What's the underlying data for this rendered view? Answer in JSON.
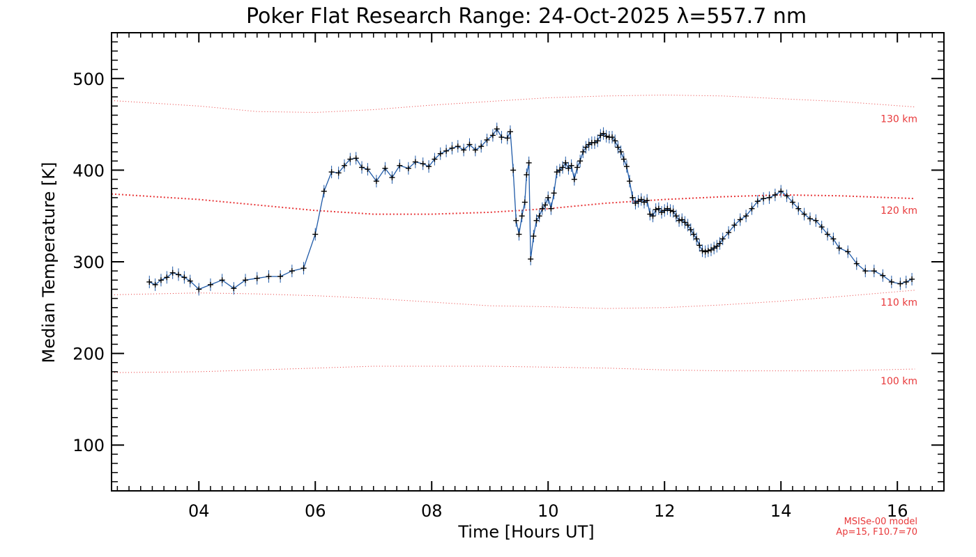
{
  "chart_data": {
    "type": "line",
    "title": "Poker Flat Research Range: 24-Oct-2025 λ=557.7 nm",
    "xlabel": "Time [Hours UT]",
    "ylabel": "Median Temperature [K]",
    "xlim": [
      2.5,
      16.8
    ],
    "ylim": [
      50,
      550
    ],
    "x_ticks": [
      4,
      6,
      8,
      10,
      12,
      14,
      16
    ],
    "x_tick_labels": [
      "04",
      "06",
      "08",
      "10",
      "12",
      "14",
      "16"
    ],
    "y_ticks": [
      100,
      200,
      300,
      400,
      500
    ],
    "y_tick_labels": [
      "100",
      "200",
      "300",
      "400",
      "500"
    ],
    "line_color": "#1f5aa8",
    "marker_color": "#000000",
    "model_color": "#e8383a",
    "series": [
      {
        "name": "Median Temperature",
        "points": [
          [
            3.15,
            278
          ],
          [
            3.25,
            275
          ],
          [
            3.35,
            280
          ],
          [
            3.45,
            283
          ],
          [
            3.55,
            288
          ],
          [
            3.65,
            286
          ],
          [
            3.75,
            283
          ],
          [
            3.85,
            279
          ],
          [
            4.0,
            270
          ],
          [
            4.2,
            275
          ],
          [
            4.4,
            280
          ],
          [
            4.6,
            271
          ],
          [
            4.8,
            280
          ],
          [
            5.0,
            282
          ],
          [
            5.2,
            284
          ],
          [
            5.4,
            284
          ],
          [
            5.6,
            290
          ],
          [
            5.8,
            293
          ],
          [
            6.0,
            330
          ],
          [
            6.15,
            377
          ],
          [
            6.28,
            398
          ],
          [
            6.4,
            397
          ],
          [
            6.5,
            405
          ],
          [
            6.6,
            412
          ],
          [
            6.7,
            413
          ],
          [
            6.8,
            403
          ],
          [
            6.9,
            401
          ],
          [
            7.05,
            388
          ],
          [
            7.2,
            402
          ],
          [
            7.32,
            392
          ],
          [
            7.45,
            405
          ],
          [
            7.6,
            402
          ],
          [
            7.72,
            409
          ],
          [
            7.85,
            407
          ],
          [
            7.95,
            404
          ],
          [
            8.05,
            412
          ],
          [
            8.15,
            418
          ],
          [
            8.25,
            421
          ],
          [
            8.35,
            424
          ],
          [
            8.45,
            426
          ],
          [
            8.55,
            422
          ],
          [
            8.65,
            428
          ],
          [
            8.75,
            422
          ],
          [
            8.85,
            426
          ],
          [
            8.95,
            433
          ],
          [
            9.05,
            438
          ],
          [
            9.12,
            445
          ],
          [
            9.2,
            436
          ],
          [
            9.3,
            435
          ],
          [
            9.35,
            442
          ],
          [
            9.4,
            400
          ],
          [
            9.45,
            345
          ],
          [
            9.5,
            330
          ],
          [
            9.55,
            350
          ],
          [
            9.6,
            365
          ],
          [
            9.63,
            395
          ],
          [
            9.67,
            408
          ],
          [
            9.7,
            303
          ],
          [
            9.75,
            328
          ],
          [
            9.8,
            345
          ],
          [
            9.85,
            350
          ],
          [
            9.9,
            358
          ],
          [
            9.95,
            362
          ],
          [
            10.0,
            370
          ],
          [
            10.05,
            358
          ],
          [
            10.1,
            375
          ],
          [
            10.15,
            398
          ],
          [
            10.2,
            400
          ],
          [
            10.25,
            403
          ],
          [
            10.3,
            408
          ],
          [
            10.35,
            402
          ],
          [
            10.4,
            405
          ],
          [
            10.45,
            390
          ],
          [
            10.5,
            403
          ],
          [
            10.55,
            410
          ],
          [
            10.6,
            420
          ],
          [
            10.65,
            425
          ],
          [
            10.7,
            428
          ],
          [
            10.75,
            430
          ],
          [
            10.8,
            430
          ],
          [
            10.85,
            432
          ],
          [
            10.9,
            438
          ],
          [
            10.95,
            440
          ],
          [
            11.0,
            437
          ],
          [
            11.05,
            436
          ],
          [
            11.1,
            436
          ],
          [
            11.15,
            432
          ],
          [
            11.2,
            425
          ],
          [
            11.25,
            420
          ],
          [
            11.3,
            412
          ],
          [
            11.35,
            404
          ],
          [
            11.4,
            388
          ],
          [
            11.45,
            370
          ],
          [
            11.5,
            364
          ],
          [
            11.55,
            366
          ],
          [
            11.6,
            368
          ],
          [
            11.65,
            365
          ],
          [
            11.7,
            367
          ],
          [
            11.75,
            352
          ],
          [
            11.8,
            350
          ],
          [
            11.85,
            357
          ],
          [
            11.9,
            358
          ],
          [
            11.95,
            354
          ],
          [
            12.0,
            356
          ],
          [
            12.05,
            358
          ],
          [
            12.1,
            356
          ],
          [
            12.15,
            355
          ],
          [
            12.2,
            350
          ],
          [
            12.25,
            345
          ],
          [
            12.3,
            346
          ],
          [
            12.35,
            343
          ],
          [
            12.4,
            340
          ],
          [
            12.45,
            335
          ],
          [
            12.5,
            330
          ],
          [
            12.55,
            325
          ],
          [
            12.6,
            318
          ],
          [
            12.65,
            312
          ],
          [
            12.7,
            311
          ],
          [
            12.75,
            312
          ],
          [
            12.8,
            313
          ],
          [
            12.85,
            315
          ],
          [
            12.9,
            317
          ],
          [
            12.95,
            320
          ],
          [
            13.0,
            325
          ],
          [
            13.1,
            332
          ],
          [
            13.2,
            340
          ],
          [
            13.3,
            346
          ],
          [
            13.4,
            350
          ],
          [
            13.5,
            358
          ],
          [
            13.6,
            366
          ],
          [
            13.7,
            369
          ],
          [
            13.8,
            370
          ],
          [
            13.9,
            373
          ],
          [
            14.0,
            377
          ],
          [
            14.1,
            372
          ],
          [
            14.2,
            365
          ],
          [
            14.3,
            358
          ],
          [
            14.4,
            352
          ],
          [
            14.5,
            347
          ],
          [
            14.6,
            345
          ],
          [
            14.7,
            338
          ],
          [
            14.8,
            330
          ],
          [
            14.9,
            325
          ],
          [
            15.0,
            315
          ],
          [
            15.15,
            311
          ],
          [
            15.3,
            298
          ],
          [
            15.45,
            290
          ],
          [
            15.6,
            290
          ],
          [
            15.75,
            285
          ],
          [
            15.9,
            278
          ],
          [
            16.05,
            276
          ],
          [
            16.15,
            278
          ],
          [
            16.25,
            281
          ]
        ]
      }
    ],
    "model_curves": [
      {
        "label": "130 km",
        "emphasis": "thin",
        "points": [
          [
            2.5,
            476
          ],
          [
            4,
            470
          ],
          [
            5,
            464
          ],
          [
            6,
            463
          ],
          [
            7,
            466
          ],
          [
            8,
            471
          ],
          [
            9,
            475
          ],
          [
            10,
            479
          ],
          [
            11,
            481
          ],
          [
            12,
            482
          ],
          [
            13,
            481
          ],
          [
            14,
            478
          ],
          [
            15,
            475
          ],
          [
            16.3,
            469
          ]
        ]
      },
      {
        "label": "120 km",
        "emphasis": "thick",
        "points": [
          [
            2.5,
            374
          ],
          [
            4,
            368
          ],
          [
            5,
            362
          ],
          [
            6,
            356
          ],
          [
            7,
            352
          ],
          [
            8,
            352
          ],
          [
            9,
            354
          ],
          [
            10,
            358
          ],
          [
            11,
            364
          ],
          [
            12,
            368
          ],
          [
            13,
            371
          ],
          [
            14,
            373
          ],
          [
            15,
            372
          ],
          [
            16.3,
            369
          ]
        ]
      },
      {
        "label": "110 km",
        "emphasis": "thin",
        "points": [
          [
            2.5,
            264
          ],
          [
            4,
            266
          ],
          [
            5,
            265
          ],
          [
            6,
            263
          ],
          [
            7,
            260
          ],
          [
            8,
            256
          ],
          [
            9,
            252
          ],
          [
            10,
            251
          ],
          [
            11,
            249
          ],
          [
            12,
            250
          ],
          [
            13,
            253
          ],
          [
            14,
            257
          ],
          [
            15,
            262
          ],
          [
            16.3,
            269
          ]
        ]
      },
      {
        "label": "100 km",
        "emphasis": "thin",
        "points": [
          [
            2.5,
            179
          ],
          [
            4,
            180
          ],
          [
            5,
            182
          ],
          [
            6,
            184
          ],
          [
            7,
            186
          ],
          [
            8,
            186
          ],
          [
            9,
            186
          ],
          [
            10,
            185
          ],
          [
            11,
            184
          ],
          [
            12,
            182
          ],
          [
            13,
            181
          ],
          [
            14,
            181
          ],
          [
            15,
            181
          ],
          [
            16.3,
            183
          ]
        ]
      }
    ],
    "model_note": [
      "MSISe-00 model",
      "Ap=15, F10.7=70"
    ]
  }
}
